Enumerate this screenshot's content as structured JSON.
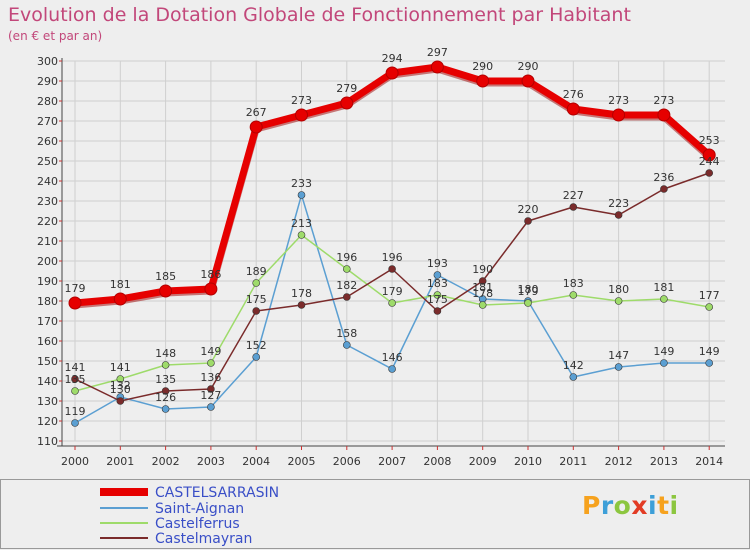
{
  "title": "Evolution de la Dotation Globale de Fonctionnement par Habitant",
  "subtitle": "(en € et par an)",
  "logo": {
    "text": "Proxiti",
    "letters": [
      {
        "ch": "P",
        "color": "#f6a21e"
      },
      {
        "ch": "r",
        "color": "#3d9fd8"
      },
      {
        "ch": "o",
        "color": "#8cc63f"
      },
      {
        "ch": "x",
        "color": "#e23b24"
      },
      {
        "ch": "i",
        "color": "#3d9fd8"
      },
      {
        "ch": "t",
        "color": "#f6a21e"
      },
      {
        "ch": "i",
        "color": "#8cc63f"
      }
    ]
  },
  "chart_data": {
    "type": "line",
    "title": "Evolution de la Dotation Globale de Fonctionnement par Habitant",
    "subtitle": "(en € et par an)",
    "x": [
      "2000",
      "2001",
      "2002",
      "2003",
      "2004",
      "2005",
      "2006",
      "2007",
      "2008",
      "2009",
      "2010",
      "2011",
      "2012",
      "2013",
      "2014"
    ],
    "ylim": [
      110,
      300
    ],
    "yticks": [
      110,
      120,
      130,
      140,
      150,
      160,
      170,
      180,
      190,
      200,
      210,
      220,
      230,
      240,
      250,
      260,
      270,
      280,
      290,
      300
    ],
    "grid": true,
    "legend_position": "bottom-left",
    "series": [
      {
        "name": "CASTELSARRASIN",
        "color": "#e60000",
        "width": 7,
        "values": [
          179,
          181,
          185,
          186,
          267,
          273,
          279,
          294,
          297,
          290,
          290,
          276,
          273,
          273,
          253
        ]
      },
      {
        "name": "Saint-Aignan",
        "color": "#5b9fd2",
        "width": 1.5,
        "values": [
          119,
          132,
          126,
          127,
          152,
          233,
          158,
          146,
          193,
          181,
          180,
          142,
          147,
          149,
          149
        ]
      },
      {
        "name": "Castelferrus",
        "color": "#9edb6a",
        "width": 1.5,
        "values": [
          135,
          141,
          148,
          149,
          189,
          213,
          196,
          179,
          183,
          178,
          179,
          183,
          180,
          181,
          177
        ]
      },
      {
        "name": "Castelmayran",
        "color": "#7a2b2b",
        "width": 1.5,
        "values": [
          141,
          130,
          135,
          136,
          175,
          178,
          182,
          196,
          175,
          190,
          220,
          227,
          223,
          236,
          244
        ]
      }
    ]
  }
}
